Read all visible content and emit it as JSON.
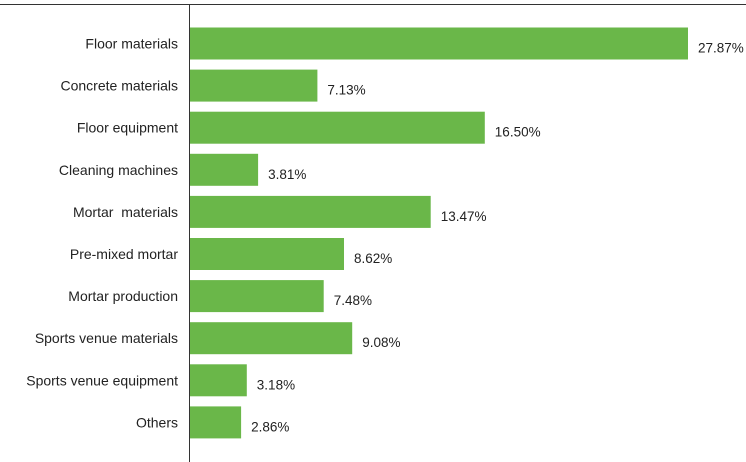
{
  "chart_data": {
    "type": "bar",
    "orientation": "horizontal",
    "title": "",
    "xlabel": "",
    "ylabel": "",
    "xlim": [
      0,
      27.87
    ],
    "grid": false,
    "bar_color": "#6ab749",
    "axis_color": "#333333",
    "categories": [
      "Floor materials",
      "Concrete materials",
      "Floor equipment",
      "Cleaning machines",
      "Mortar  materials",
      "Pre-mixed mortar",
      "Mortar production",
      "Sports venue materials",
      "Sports venue equipment",
      "Others"
    ],
    "values": [
      27.87,
      7.13,
      16.5,
      3.81,
      13.47,
      8.62,
      7.48,
      9.08,
      3.18,
      2.86
    ],
    "value_labels": [
      "27.87%",
      "7.13%",
      "16.50%",
      "3.81%",
      "13.47%",
      "8.62%",
      "7.48%",
      "9.08%",
      "3.18%",
      "2.86%"
    ]
  }
}
